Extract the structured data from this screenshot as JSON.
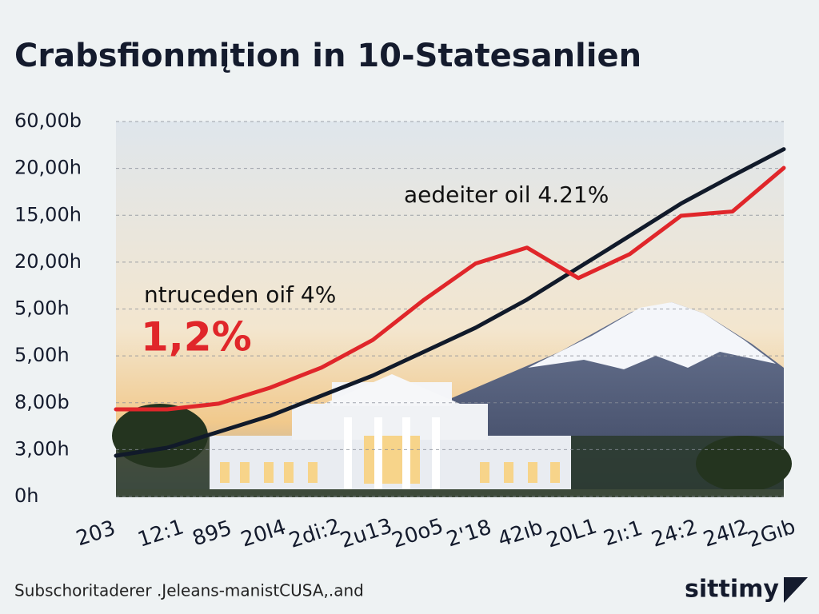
{
  "chart_data": {
    "type": "line",
    "title": "Crabsfionmįtion in 10-Statesanlien",
    "annotations": [
      {
        "text": "aedeiter oil 4.21%",
        "color": "#111111"
      },
      {
        "text": "ntruceden oif 4%",
        "color": "#111111"
      },
      {
        "text": "1,2%",
        "color": "#e0262a"
      }
    ],
    "categories": [
      "203",
      "12:1",
      "895",
      "20I4",
      "2di:2",
      "2u13",
      "20o5",
      "2'18",
      "42ıb",
      "20L1",
      "2ı:1",
      "24:2",
      "24I2",
      "2Gıb"
    ],
    "series": [
      {
        "color": "#111a2a",
        "values": [
          8.7,
          10.4,
          13.8,
          17.2,
          21.5,
          25.8,
          30.9,
          36,
          42,
          48.8,
          55.6,
          62.5,
          68.4,
          74.1
        ]
      },
      {
        "color": "#e0262a",
        "values": [
          18.6,
          18.6,
          19.8,
          23.2,
          27.5,
          33.4,
          42,
          49.7,
          53.1,
          46.6,
          51.7,
          59.9,
          60.8,
          70.1
        ]
      }
    ],
    "ylim": [
      0,
      80
    ],
    "yticks": [
      {
        "value": 0,
        "label": "0h"
      },
      {
        "value": 10,
        "label": "3,00h"
      },
      {
        "value": 20,
        "label": "8,00b"
      },
      {
        "value": 30,
        "label": "5,00h"
      },
      {
        "value": 40,
        "label": "5,00h"
      },
      {
        "value": 50,
        "label": "20,00h"
      },
      {
        "value": 60,
        "label": "15,00h"
      },
      {
        "value": 70,
        "label": "20,00h"
      },
      {
        "value": 80,
        "label": "60,00b"
      }
    ],
    "grid": true,
    "source": "Subschoritaderer .Jeleans-manistCUSA,.and",
    "logo": "sittimy"
  }
}
